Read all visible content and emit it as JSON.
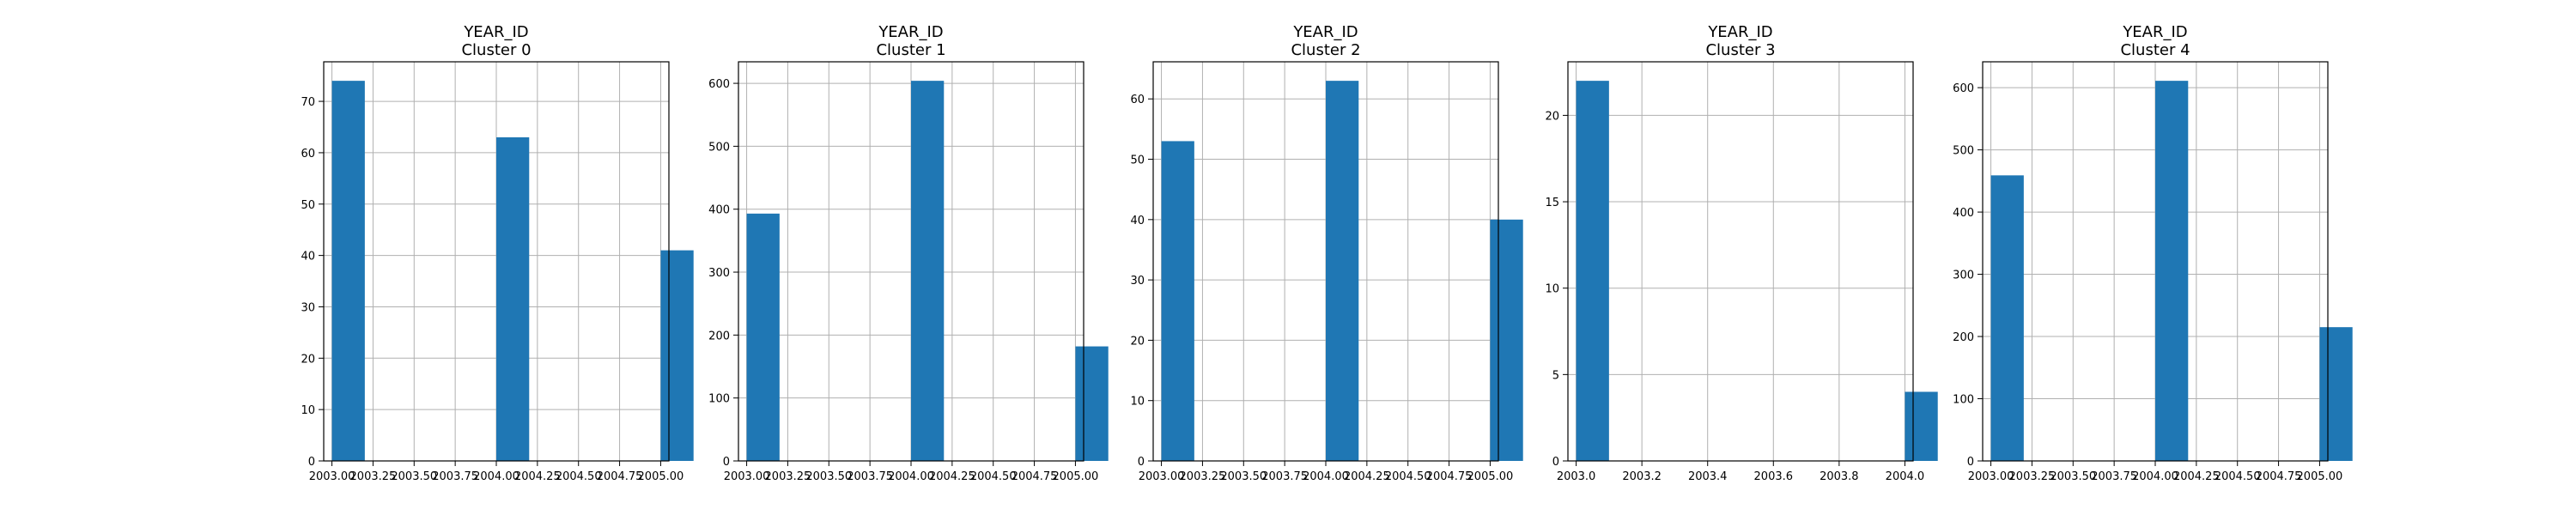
{
  "figure": {
    "background": "#ffffff"
  },
  "chart_data": [
    {
      "type": "bar",
      "title": "YEAR_ID",
      "subtitle": "Cluster 0",
      "x": [
        2003.0,
        2004.0,
        2005.0
      ],
      "values": [
        74,
        63,
        41
      ],
      "xlim": [
        2002.95,
        2005.05
      ],
      "ylim": [
        0,
        77.7
      ],
      "bin_width": 0.2,
      "xticks": [
        2003.0,
        2003.25,
        2003.5,
        2003.75,
        2004.0,
        2004.25,
        2004.5,
        2004.75,
        2005.0
      ],
      "xtick_labels": [
        "2003.00",
        "2003.25",
        "2003.50",
        "2003.75",
        "2004.00",
        "2004.25",
        "2004.50",
        "2004.75",
        "2005.00"
      ],
      "yticks": [
        0,
        10,
        20,
        30,
        40,
        50,
        60,
        70
      ],
      "ytick_labels": [
        "0",
        "10",
        "20",
        "30",
        "40",
        "50",
        "60",
        "70"
      ],
      "color": "#1f77b4",
      "grid": true
    },
    {
      "type": "bar",
      "title": "YEAR_ID",
      "subtitle": "Cluster 1",
      "x": [
        2003.0,
        2004.0,
        2005.0
      ],
      "values": [
        393,
        604,
        182
      ],
      "xlim": [
        2002.95,
        2005.05
      ],
      "ylim": [
        0,
        634.2
      ],
      "bin_width": 0.2,
      "xticks": [
        2003.0,
        2003.25,
        2003.5,
        2003.75,
        2004.0,
        2004.25,
        2004.5,
        2004.75,
        2005.0
      ],
      "xtick_labels": [
        "2003.00",
        "2003.25",
        "2003.50",
        "2003.75",
        "2004.00",
        "2004.25",
        "2004.50",
        "2004.75",
        "2005.00"
      ],
      "yticks": [
        0,
        100,
        200,
        300,
        400,
        500,
        600
      ],
      "ytick_labels": [
        "0",
        "100",
        "200",
        "300",
        "400",
        "500",
        "600"
      ],
      "color": "#1f77b4",
      "grid": true
    },
    {
      "type": "bar",
      "title": "YEAR_ID",
      "subtitle": "Cluster 2",
      "x": [
        2003.0,
        2004.0,
        2005.0
      ],
      "values": [
        53,
        63,
        40
      ],
      "xlim": [
        2002.95,
        2005.05
      ],
      "ylim": [
        0,
        66.15
      ],
      "bin_width": 0.2,
      "xticks": [
        2003.0,
        2003.25,
        2003.5,
        2003.75,
        2004.0,
        2004.25,
        2004.5,
        2004.75,
        2005.0
      ],
      "xtick_labels": [
        "2003.00",
        "2003.25",
        "2003.50",
        "2003.75",
        "2004.00",
        "2004.25",
        "2004.50",
        "2004.75",
        "2005.00"
      ],
      "yticks": [
        0,
        10,
        20,
        30,
        40,
        50,
        60
      ],
      "ytick_labels": [
        "0",
        "10",
        "20",
        "30",
        "40",
        "50",
        "60"
      ],
      "color": "#1f77b4",
      "grid": true
    },
    {
      "type": "bar",
      "title": "YEAR_ID",
      "subtitle": "Cluster 3",
      "x": [
        2003.0,
        2004.0
      ],
      "values": [
        22,
        4
      ],
      "xlim": [
        2002.975,
        2004.025
      ],
      "ylim": [
        0,
        23.1
      ],
      "bin_width": 0.1,
      "xticks": [
        2003.0,
        2003.2,
        2003.4,
        2003.6,
        2003.8,
        2004.0
      ],
      "xtick_labels": [
        "2003.0",
        "2003.2",
        "2003.4",
        "2003.6",
        "2003.8",
        "2004.0"
      ],
      "yticks": [
        0,
        5,
        10,
        15,
        20
      ],
      "ytick_labels": [
        "0",
        "5",
        "10",
        "15",
        "20"
      ],
      "color": "#1f77b4",
      "grid": true
    },
    {
      "type": "bar",
      "title": "YEAR_ID",
      "subtitle": "Cluster 4",
      "x": [
        2003.0,
        2004.0,
        2005.0
      ],
      "values": [
        459,
        611,
        215
      ],
      "xlim": [
        2002.95,
        2005.05
      ],
      "ylim": [
        0,
        641.55
      ],
      "bin_width": 0.2,
      "xticks": [
        2003.0,
        2003.25,
        2003.5,
        2003.75,
        2004.0,
        2004.25,
        2004.5,
        2004.75,
        2005.0
      ],
      "xtick_labels": [
        "2003.00",
        "2003.25",
        "2003.50",
        "2003.75",
        "2004.00",
        "2004.25",
        "2004.50",
        "2004.75",
        "2005.00"
      ],
      "yticks": [
        0,
        100,
        200,
        300,
        400,
        500,
        600
      ],
      "ytick_labels": [
        "0",
        "100",
        "200",
        "300",
        "400",
        "500",
        "600"
      ],
      "color": "#1f77b4",
      "grid": true
    }
  ]
}
